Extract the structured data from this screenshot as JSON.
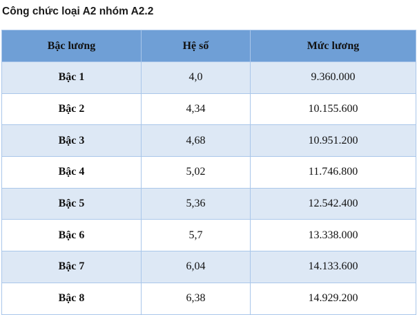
{
  "title": "Công chức loại A2 nhóm A2.2",
  "table": {
    "header": [
      "Bậc lương",
      "Hệ số",
      "Mức lương"
    ],
    "rows": [
      [
        "Bậc 1",
        "4,0",
        "9.360.000"
      ],
      [
        "Bậc 2",
        "4,34",
        "10.155.600"
      ],
      [
        "Bậc 3",
        "4,68",
        "10.951.200"
      ],
      [
        "Bậc 4",
        "5,02",
        "11.746.800"
      ],
      [
        "Bậc 5",
        "5,36",
        "12.542.400"
      ],
      [
        "Bậc 6",
        "5,7",
        "13.338.000"
      ],
      [
        "Bậc 7",
        "6,04",
        "14.133.600"
      ],
      [
        "Bậc 8",
        "6,38",
        "14.929.200"
      ]
    ]
  }
}
